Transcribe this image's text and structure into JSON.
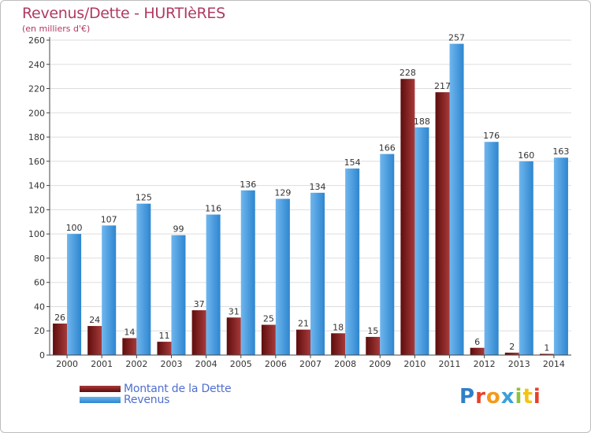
{
  "title": "Revenus/Dette - HURTIèRES",
  "subtitle": "(en milliers d'€)",
  "colors": {
    "dette_dark": "#5e0d0d",
    "dette_light": "#a83a3a",
    "revenus_dark": "#2e86cf",
    "revenus_light": "#6fb6ee",
    "title": "#b03a60",
    "legend_text": "#4f6fd0",
    "grid": "#dddddd",
    "axis": "#444444"
  },
  "chart_data": {
    "type": "bar",
    "title": "Revenus/Dette - HURTIèRES",
    "ylabel": "(en milliers d'€)",
    "xlabel": "",
    "ylim": [
      0,
      260
    ],
    "yticks": [
      0,
      20,
      40,
      60,
      80,
      100,
      120,
      140,
      160,
      180,
      200,
      220,
      240,
      260
    ],
    "grid": true,
    "categories": [
      "2000",
      "2001",
      "2002",
      "2003",
      "2004",
      "2005",
      "2006",
      "2007",
      "2008",
      "2009",
      "2010",
      "2011",
      "2012",
      "2013",
      "2014"
    ],
    "series": [
      {
        "name": "Montant de la Dette",
        "values": [
          26,
          24,
          14,
          11,
          37,
          31,
          25,
          21,
          18,
          15,
          228,
          217,
          6,
          2,
          1
        ]
      },
      {
        "name": "Revenus",
        "values": [
          100,
          107,
          125,
          99,
          116,
          136,
          129,
          134,
          154,
          166,
          188,
          257,
          176,
          160,
          163
        ]
      }
    ],
    "legend_position": "bottom-left"
  },
  "legend": {
    "items": [
      {
        "label": "Montant de la Dette"
      },
      {
        "label": "Revenus"
      }
    ]
  },
  "logo": {
    "text": "Proxiti",
    "letters": [
      {
        "ch": "P",
        "color": "#2f7fc8"
      },
      {
        "ch": "r",
        "color": "#e8402a"
      },
      {
        "ch": "o",
        "color": "#f39a1c"
      },
      {
        "ch": "x",
        "color": "#3aa0dc"
      },
      {
        "ch": "i",
        "color": "#8fc33c"
      },
      {
        "ch": "t",
        "color": "#f2c416"
      },
      {
        "ch": "i",
        "color": "#e8402a"
      }
    ]
  }
}
